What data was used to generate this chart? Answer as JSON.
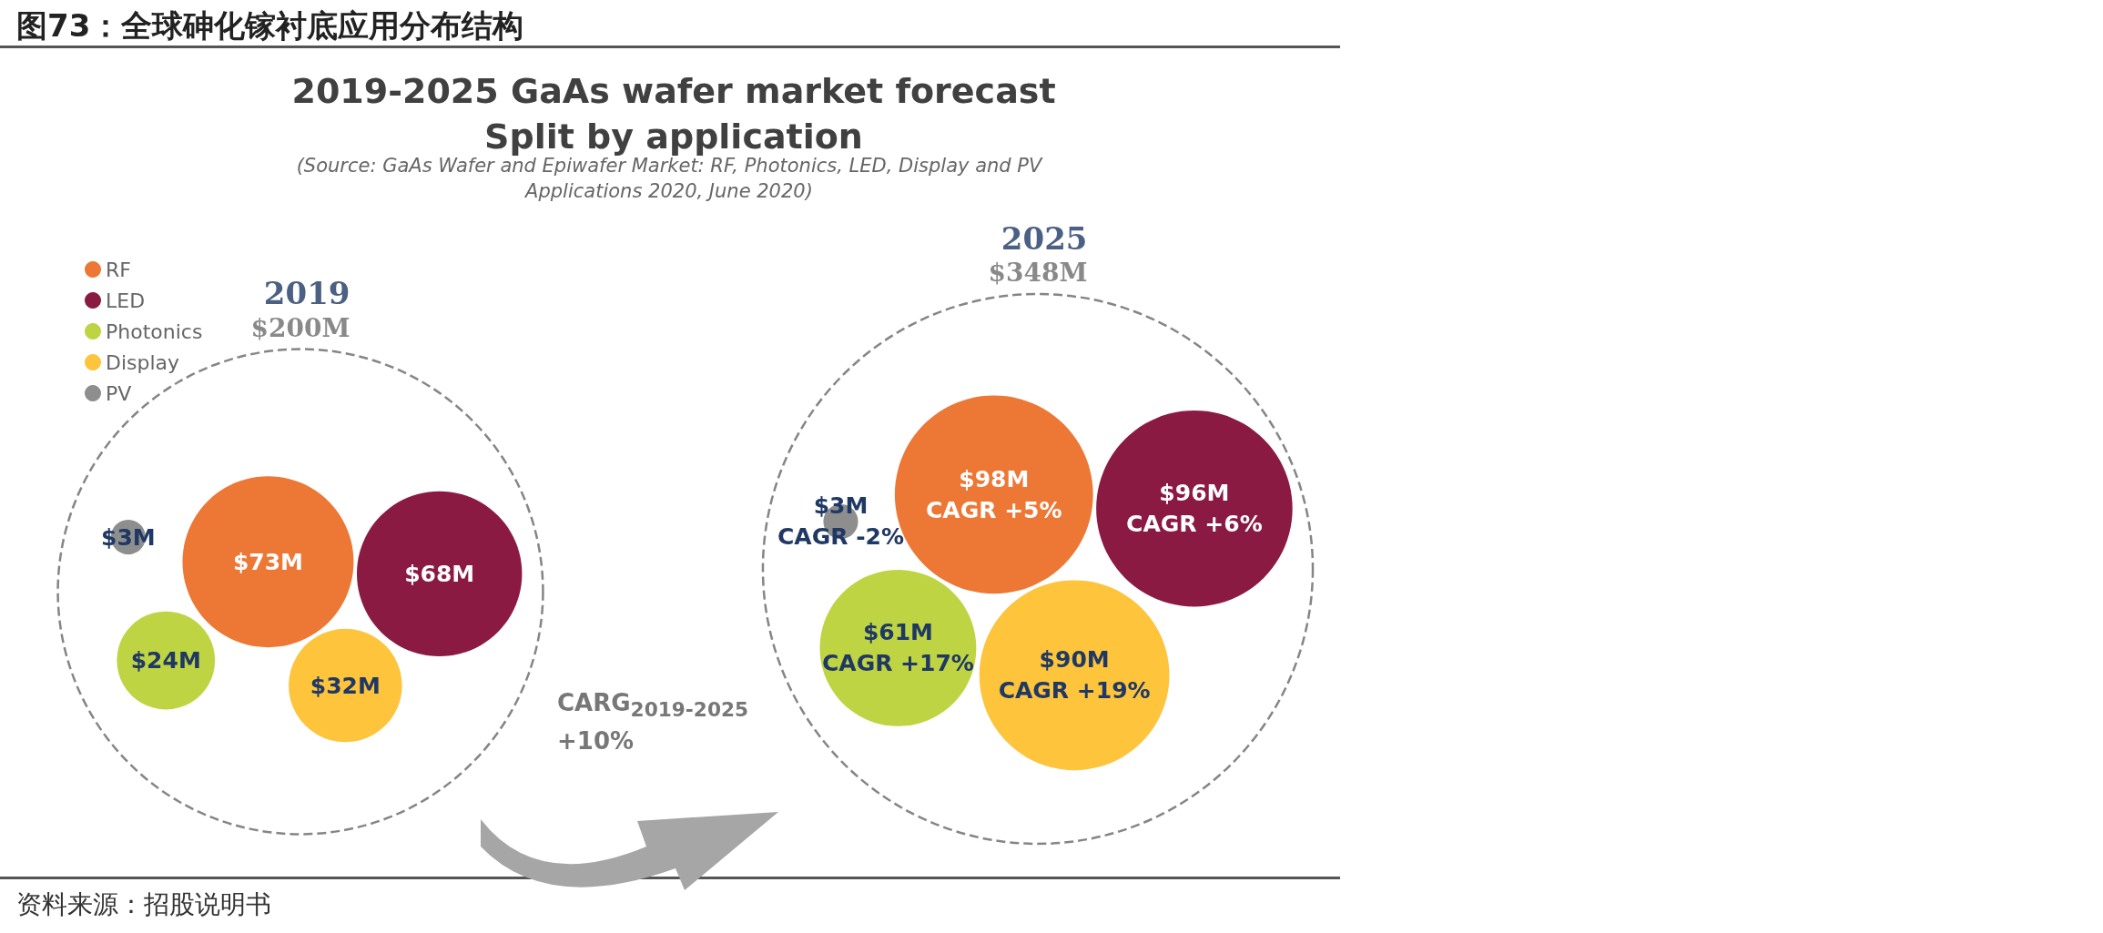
{
  "chart_data": {
    "type": "other",
    "title": "图73：全球砷化镓衬底应用分布结构",
    "subtitle": "2019-2025 GaAs wafer market forecast\nSplit by application",
    "categories": [
      "2019",
      "2025"
    ],
    "totals": [
      "$200M",
      "$348M"
    ],
    "series": [
      {
        "name": "RF",
        "color": "#ed7735",
        "values": [
          73,
          98
        ],
        "value_labels": [
          "$73M",
          "$98M"
        ]
      },
      {
        "name": "LED",
        "color": "#8b1a42",
        "values": [
          68,
          96
        ],
        "value_labels": [
          "$68M",
          "$96M"
        ]
      },
      {
        "name": "Photonics",
        "color": "#bfd443",
        "values": [
          24,
          61
        ],
        "value_labels": [
          "$24M",
          "$61M"
        ]
      },
      {
        "name": "Display",
        "color": "#fdc43c",
        "values": [
          32,
          90
        ],
        "value_labels": [
          "$32M",
          "$90M"
        ]
      },
      {
        "name": "PV",
        "color": "#8e8e8e",
        "values": [
          3,
          3
        ],
        "value_labels": [
          "$3M",
          "$3M"
        ]
      }
    ],
    "legend": "top left",
    "annotations": [
      "(Source: GaAs Wafer and Epiwafer Market: RF, Photonics, LED, Display and PV Applications 2020, June 2020)",
      "CARG$_{2019-2025}$\n+10%",
      "资料来源：招股说明书",
      "CAGR +5%",
      "CAGR +6%",
      "CAGR +17%",
      "CAGR +19%",
      "CAGR -2%"
    ]
  }
}
